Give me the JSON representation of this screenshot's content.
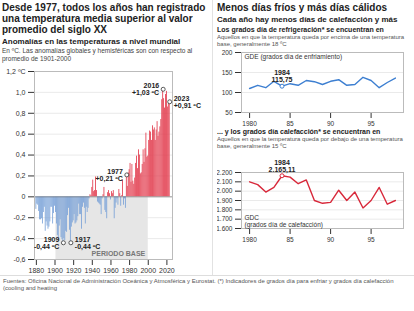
{
  "panel_title": "Menos días fríos y más días cálidos",
  "panel_subtitle": "Cada año hay menos días de calefacción y más",
  "source": "Fuentes: Oficina Nacional de Administración Oceánica y Atmosférica y Eurostat. (*) Indicadores de grados día para enfriar y grados día calefacción (cooling and heating",
  "chart_data": [
    {
      "type": "bar",
      "title": "Desde 1977, todos los años han registrado una temperatura media superior al valor promedio del siglo XX",
      "subtitle": "Anomalías en las temperaturas a nivel mundial",
      "note": "En ºC. Las anomalías globales y hemisféricas son con respecto al promedio de 1901-2000",
      "x": [
        1880,
        1881,
        1882,
        1883,
        1884,
        1885,
        1886,
        1887,
        1888,
        1889,
        1890,
        1891,
        1892,
        1893,
        1894,
        1895,
        1896,
        1897,
        1898,
        1899,
        1900,
        1901,
        1902,
        1903,
        1904,
        1905,
        1906,
        1907,
        1908,
        1909,
        1910,
        1911,
        1912,
        1913,
        1914,
        1915,
        1916,
        1917,
        1918,
        1919,
        1920,
        1921,
        1922,
        1923,
        1924,
        1925,
        1926,
        1927,
        1928,
        1929,
        1930,
        1931,
        1932,
        1933,
        1934,
        1935,
        1936,
        1937,
        1938,
        1939,
        1940,
        1941,
        1942,
        1943,
        1944,
        1945,
        1946,
        1947,
        1948,
        1949,
        1950,
        1951,
        1952,
        1953,
        1954,
        1955,
        1956,
        1957,
        1958,
        1959,
        1960,
        1961,
        1962,
        1963,
        1964,
        1965,
        1966,
        1967,
        1968,
        1969,
        1970,
        1971,
        1972,
        1973,
        1974,
        1975,
        1976,
        1977,
        1978,
        1979,
        1980,
        1981,
        1982,
        1983,
        1984,
        1985,
        1986,
        1987,
        1988,
        1989,
        1990,
        1991,
        1992,
        1993,
        1994,
        1995,
        1996,
        1997,
        1998,
        1999,
        2000,
        2001,
        2002,
        2003,
        2004,
        2005,
        2006,
        2007,
        2008,
        2009,
        2010,
        2011,
        2012,
        2013,
        2014,
        2015,
        2016,
        2017,
        2018,
        2019,
        2020,
        2021,
        2022,
        2023
      ],
      "values": [
        -0.12,
        -0.07,
        -0.08,
        -0.14,
        -0.22,
        -0.22,
        -0.21,
        -0.26,
        -0.15,
        -0.1,
        -0.33,
        -0.24,
        -0.28,
        -0.31,
        -0.29,
        -0.24,
        -0.1,
        -0.1,
        -0.26,
        -0.16,
        -0.09,
        -0.15,
        -0.26,
        -0.37,
        -0.43,
        -0.28,
        -0.22,
        -0.39,
        -0.41,
        -0.44,
        -0.4,
        -0.42,
        -0.33,
        -0.34,
        -0.18,
        -0.11,
        -0.32,
        -0.44,
        -0.29,
        -0.25,
        -0.23,
        -0.17,
        -0.26,
        -0.25,
        -0.23,
        -0.19,
        -0.07,
        -0.17,
        -0.17,
        -0.31,
        -0.1,
        -0.06,
        -0.11,
        -0.26,
        -0.1,
        -0.15,
        -0.11,
        -0.02,
        0.02,
        0.01,
        0.09,
        0.16,
        0.05,
        0.06,
        0.19,
        0.06,
        -0.05,
        -0.06,
        -0.07,
        -0.08,
        -0.17,
        -0.02,
        0.02,
        0.09,
        -0.13,
        -0.15,
        -0.21,
        0.04,
        0.06,
        0.03,
        -0.03,
        0.05,
        0.03,
        0.06,
        -0.21,
        -0.11,
        -0.06,
        -0.02,
        -0.08,
        0.07,
        0.03,
        -0.09,
        0.01,
        0.16,
        -0.08,
        -0.02,
        -0.11,
        0.21,
        0.1,
        0.23,
        0.26,
        0.32,
        0.14,
        0.31,
        0.15,
        0.12,
        0.18,
        0.32,
        0.39,
        0.27,
        0.45,
        0.4,
        0.22,
        0.23,
        0.31,
        0.45,
        0.33,
        0.46,
        0.61,
        0.38,
        0.39,
        0.54,
        0.63,
        0.62,
        0.54,
        0.68,
        0.64,
        0.66,
        0.54,
        0.64,
        0.72,
        0.58,
        0.62,
        0.67,
        0.74,
        0.93,
        1.03,
        0.94,
        0.85,
        0.98,
        1.01,
        0.86,
        0.89,
        0.91
      ],
      "colors": [
        "#7ba3d8",
        "#7ba3d8",
        "#7ba3d8",
        "#7ba3d8",
        "#7ba3d8",
        "#7ba3d8",
        "#7ba3d8",
        "#7ba3d8",
        "#7ba3d8",
        "#7ba3d8",
        "#7ba3d8",
        "#7ba3d8",
        "#7ba3d8",
        "#7ba3d8",
        "#7ba3d8",
        "#7ba3d8",
        "#7ba3d8",
        "#7ba3d8",
        "#7ba3d8",
        "#7ba3d8",
        "#7ba3d8",
        "#7ba3d8",
        "#7ba3d8",
        "#7ba3d8",
        "#7ba3d8",
        "#7ba3d8",
        "#7ba3d8",
        "#7ba3d8",
        "#7ba3d8",
        "#7ba3d8",
        "#7ba3d8",
        "#7ba3d8",
        "#7ba3d8",
        "#7ba3d8",
        "#7ba3d8",
        "#7ba3d8",
        "#7ba3d8",
        "#7ba3d8",
        "#7ba3d8",
        "#7ba3d8",
        "#7ba3d8",
        "#7ba3d8",
        "#7ba3d8",
        "#7ba3d8",
        "#7ba3d8",
        "#7ba3d8",
        "#7ba3d8",
        "#7ba3d8",
        "#7ba3d8",
        "#7ba3d8",
        "#7ba3d8",
        "#7ba3d8",
        "#7ba3d8",
        "#7ba3d8",
        "#7ba3d8",
        "#7ba3d8",
        "#7ba3d8",
        "#7ba3d8",
        "#e23c4e",
        "#e23c4e",
        "#e23c4e",
        "#e23c4e",
        "#e23c4e",
        "#e23c4e",
        "#e23c4e",
        "#e23c4e",
        "#7ba3d8",
        "#7ba3d8",
        "#7ba3d8",
        "#7ba3d8",
        "#7ba3d8",
        "#7ba3d8",
        "#e23c4e",
        "#e23c4e",
        "#7ba3d8",
        "#7ba3d8",
        "#7ba3d8",
        "#e23c4e",
        "#e23c4e",
        "#e23c4e",
        "#7ba3d8",
        "#e23c4e",
        "#e23c4e",
        "#e23c4e",
        "#7ba3d8",
        "#7ba3d8",
        "#7ba3d8",
        "#7ba3d8",
        "#7ba3d8",
        "#e23c4e",
        "#e23c4e",
        "#7ba3d8",
        "#e23c4e",
        "#e23c4e",
        "#7ba3d8",
        "#7ba3d8",
        "#7ba3d8",
        "#e23c4e",
        "#e23c4e",
        "#e23c4e",
        "#e23c4e",
        "#e23c4e",
        "#e23c4e",
        "#e23c4e",
        "#e23c4e",
        "#e23c4e",
        "#e23c4e",
        "#e23c4e",
        "#e23c4e",
        "#e23c4e",
        "#e23c4e",
        "#e23c4e",
        "#e23c4e",
        "#e23c4e",
        "#e23c4e",
        "#e23c4e",
        "#e23c4e",
        "#e23c4e",
        "#e23c4e",
        "#e23c4e",
        "#e23c4e",
        "#e23c4e",
        "#e23c4e",
        "#e23c4e",
        "#e23c4e",
        "#e23c4e",
        "#e23c4e",
        "#e23c4e",
        "#e23c4e",
        "#e23c4e",
        "#e23c4e",
        "#e23c4e",
        "#e23c4e",
        "#e23c4e",
        "#e23c4e",
        "#e23c4e",
        "#e23c4e",
        "#e23c4e",
        "#e23c4e",
        "#e23c4e",
        "#e23c4e",
        "#e23c4e",
        "#e23c4e",
        "#e23c4e"
      ],
      "xlim": [
        1878,
        2026
      ],
      "xticks": [
        1880,
        1900,
        1920,
        1940,
        1960,
        1980,
        2000,
        2020
      ],
      "ylim": [
        -0.6,
        1.2
      ],
      "yticks": [
        {
          "value": -0.6,
          "label": "-0,6"
        },
        {
          "value": -0.4,
          "label": "-0,4"
        },
        {
          "value": -0.2,
          "label": "-0,2"
        },
        0,
        {
          "value": 0.2,
          "label": "0,2"
        },
        {
          "value": 0.4,
          "label": "0,4"
        },
        {
          "value": 0.6,
          "label": "0,6"
        },
        {
          "value": 0.8,
          "label": "0,8"
        },
        {
          "value": 1.0,
          "label": "1,0"
        },
        {
          "value": 1.2,
          "label": "1,2 ºC"
        }
      ],
      "grid": true,
      "base_period": {
        "start": 1901,
        "end": 2000,
        "label": "PERIODO BASE"
      },
      "annotations": [
        {
          "x": 1909,
          "y": -0.44,
          "label": "1909",
          "value_label": "-0,44 ºC"
        },
        {
          "x": 1917,
          "y": -0.44,
          "label": "1917",
          "value_label": "-0,44 ºC"
        },
        {
          "x": 1977,
          "y": 0.21,
          "label": "1977",
          "value_label": "+0,21 ºC"
        },
        {
          "x": 2016,
          "y": 1.03,
          "label": "2016",
          "value_label": "+1,03 ºC"
        },
        {
          "x": 2023,
          "y": 0.91,
          "label": "2023",
          "value_label": "+0,91 ºC"
        }
      ]
    },
    {
      "type": "line",
      "title": "Los grados día de refrigeración* se encuentran en",
      "note": "Aquellos en que la temperatura queda por encima de una temperatura base, generalmente 18 ºC",
      "ylabel": "GDE",
      "ylabel_note": "(grados día de enfriamiento)",
      "x": [
        1980,
        1981,
        1982,
        1983,
        1984,
        1985,
        1986,
        1987,
        1988,
        1989,
        1990,
        1991,
        1992,
        1993,
        1994,
        1995,
        1996,
        1997,
        1998
      ],
      "values": [
        110,
        118,
        112,
        128,
        115.75,
        122,
        118,
        130,
        127,
        120,
        128,
        132,
        118,
        120,
        138,
        130,
        112,
        125,
        136
      ],
      "color": "#3d7fd1",
      "xlim": [
        1979,
        1999
      ],
      "xticks": [
        1980,
        {
          "value": 1985,
          "label": "85"
        },
        {
          "value": 1990,
          "label": "90"
        },
        {
          "value": 1995,
          "label": "95"
        }
      ],
      "ylim": [
        50,
        200
      ],
      "yticks": [
        50,
        100,
        150,
        200
      ],
      "grid": true,
      "annotations": [
        {
          "x": 1984,
          "y": 115.75,
          "label": "1984",
          "value_label": "115,75"
        }
      ]
    },
    {
      "type": "line",
      "title": "... y los grados día calefacción* se encuentran en",
      "note": "Aquellos en que la temperatura queda por debajo de una temperatura base, generalmente 15 ºC",
      "ylabel": "GDC",
      "ylabel_note": "(grados día de calefacción)",
      "x": [
        1980,
        1981,
        1982,
        1983,
        1984,
        1985,
        1986,
        1987,
        1988,
        1989,
        1990,
        1991,
        1992,
        1993,
        1994,
        1995,
        1996,
        1997,
        1998
      ],
      "values": [
        2100,
        2070,
        1990,
        2040,
        2165.11,
        2150,
        2080,
        2120,
        1900,
        1870,
        1880,
        2010,
        1900,
        1990,
        1820,
        1900,
        2040,
        1860,
        1900
      ],
      "color": "#d8283a",
      "xlim": [
        1979,
        1999
      ],
      "xticks": [
        1980,
        {
          "value": 1985,
          "label": "85"
        },
        {
          "value": 1990,
          "label": "90"
        },
        {
          "value": 1995,
          "label": "95"
        }
      ],
      "ylim": [
        1600,
        2200
      ],
      "yticks": [
        {
          "value": 1600,
          "label": "1.600"
        },
        {
          "value": 1700,
          "label": "1.700"
        },
        {
          "value": 1800,
          "label": "1.800"
        },
        {
          "value": 1900,
          "label": "1.900"
        },
        {
          "value": 2000,
          "label": "2.000"
        },
        {
          "value": 2100,
          "label": "2.100"
        },
        {
          "value": 2200,
          "label": "2.200"
        }
      ],
      "grid": true,
      "annotations": [
        {
          "x": 1984,
          "y": 2165.11,
          "label": "1984",
          "value_label": "2.165,11"
        }
      ]
    }
  ]
}
